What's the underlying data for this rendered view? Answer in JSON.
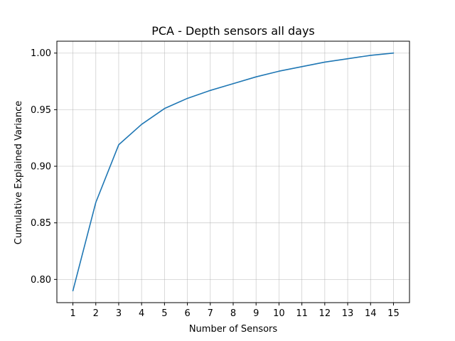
{
  "chart_data": {
    "type": "line",
    "title": "PCA - Depth sensors all days",
    "xlabel": "Number of Sensors",
    "ylabel": "Cumulative Explained Variance",
    "x": [
      1,
      2,
      3,
      4,
      5,
      6,
      7,
      8,
      9,
      10,
      11,
      12,
      13,
      14,
      15
    ],
    "series": [
      {
        "values": [
          0.79,
          0.868,
          0.919,
          0.937,
          0.951,
          0.96,
          0.967,
          0.973,
          0.979,
          0.984,
          0.988,
          0.992,
          0.995,
          0.998,
          1.0
        ]
      }
    ],
    "xticks": [
      1,
      2,
      3,
      4,
      5,
      6,
      7,
      8,
      9,
      10,
      11,
      12,
      13,
      14,
      15
    ],
    "yticks": [
      0.8,
      0.85,
      0.9,
      0.95,
      1.0
    ],
    "ytick_labels": [
      "0.80",
      "0.85",
      "0.90",
      "0.95",
      "1.00"
    ],
    "xlim": [
      0.3,
      15.7
    ],
    "ylim": [
      0.7795,
      1.0105
    ],
    "grid": true,
    "line_color": "#1f77b4",
    "grid_color": "#b0b0b0"
  }
}
